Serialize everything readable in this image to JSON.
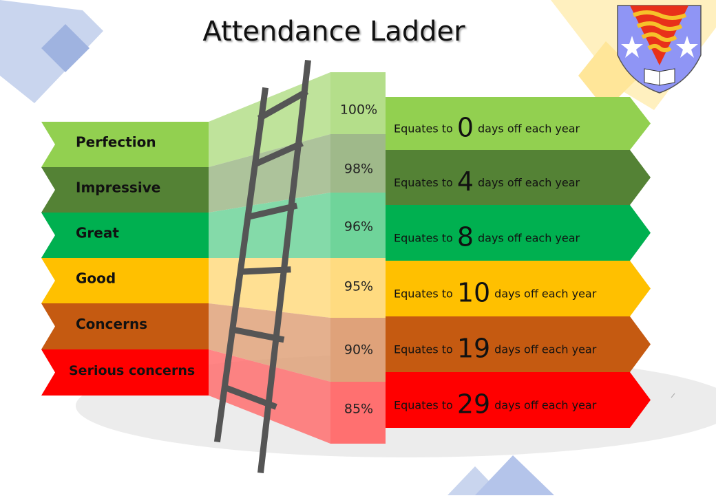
{
  "title": "Attendance Ladder",
  "levels": [
    {
      "label": "Perfection",
      "percent": "100%",
      "prefix": "Equates to",
      "days": 0,
      "suffix": "days off each year"
    },
    {
      "label": "Impressive",
      "percent": "98%",
      "prefix": "Equates to",
      "days": 4,
      "suffix": "days off each year"
    },
    {
      "label": "Great",
      "percent": "96%",
      "prefix": "Equates to",
      "days": 8,
      "suffix": "days off each year"
    },
    {
      "label": "Good",
      "percent": "95%",
      "prefix": "Equates to",
      "days": 10,
      "suffix": "days off each year"
    },
    {
      "label": "Concerns",
      "percent": "90%",
      "prefix": "Equates to",
      "days": 19,
      "suffix": "days off each year"
    },
    {
      "label": "Serious concerns",
      "percent": "85%",
      "prefix": "Equates to",
      "days": 29,
      "suffix": "days off each year"
    }
  ]
}
